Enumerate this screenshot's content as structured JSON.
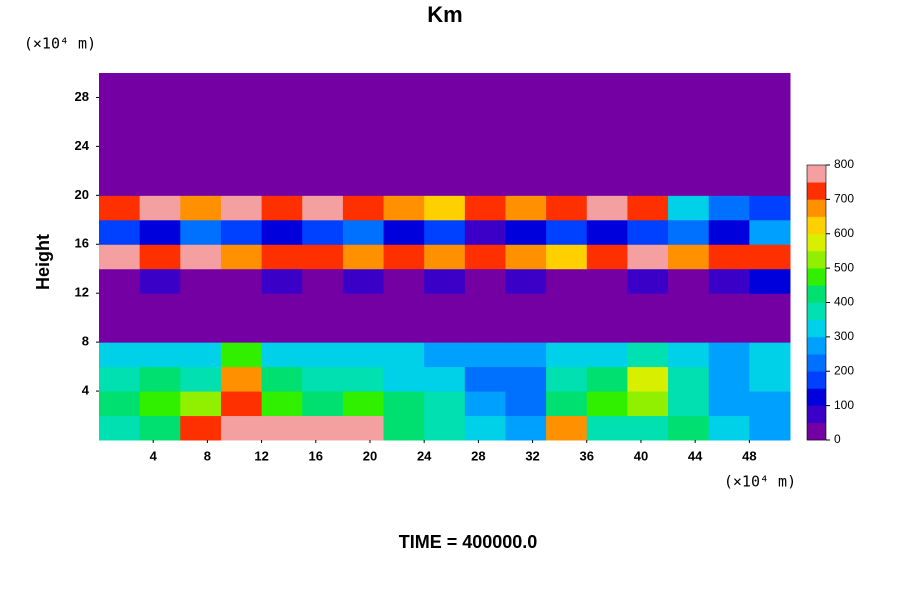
{
  "chart_data": {
    "type": "heatmap",
    "title": "Km",
    "y_label": "Height",
    "y_unit": "(×10⁴ m)",
    "x_unit": "(×10⁴ m)",
    "footer": "TIME = 400000.0",
    "xlim": [
      0,
      51
    ],
    "ylim": [
      0,
      30
    ],
    "xticks": [
      4,
      8,
      12,
      16,
      20,
      24,
      28,
      32,
      36,
      40,
      44,
      48
    ],
    "yticks": [
      4,
      8,
      12,
      16,
      20,
      24,
      28
    ],
    "x_edges": [
      0,
      3,
      6,
      9,
      12,
      15,
      18,
      21,
      24,
      27,
      30,
      33,
      36,
      39,
      42,
      45,
      48,
      51
    ],
    "y_edges": [
      0,
      2,
      4,
      6,
      8,
      10,
      12,
      14,
      16,
      18,
      20,
      22,
      24,
      26,
      28,
      30
    ],
    "z": [
      [
        380,
        420,
        720,
        750,
        760,
        780,
        760,
        400,
        350,
        300,
        260,
        650,
        380,
        350,
        420,
        300,
        250
      ],
      [
        400,
        450,
        520,
        700,
        450,
        400,
        480,
        420,
        350,
        250,
        220,
        420,
        450,
        500,
        380,
        280,
        260
      ],
      [
        380,
        420,
        350,
        650,
        420,
        380,
        350,
        330,
        300,
        200,
        200,
        380,
        420,
        550,
        350,
        260,
        300
      ],
      [
        320,
        330,
        300,
        450,
        320,
        300,
        310,
        300,
        290,
        280,
        270,
        300,
        320,
        380,
        300,
        290,
        300
      ],
      [
        0,
        0,
        0,
        0,
        0,
        0,
        0,
        0,
        0,
        0,
        0,
        0,
        0,
        0,
        0,
        0,
        0
      ],
      [
        0,
        0,
        0,
        0,
        0,
        0,
        0,
        0,
        0,
        0,
        0,
        0,
        0,
        0,
        0,
        0,
        0
      ],
      [
        0,
        50,
        0,
        0,
        50,
        0,
        50,
        0,
        50,
        0,
        50,
        0,
        0,
        50,
        0,
        50,
        100
      ],
      [
        750,
        700,
        780,
        650,
        700,
        720,
        680,
        700,
        650,
        700,
        680,
        620,
        700,
        750,
        680,
        700,
        720
      ],
      [
        150,
        100,
        200,
        150,
        100,
        150,
        200,
        100,
        150,
        50,
        100,
        150,
        100,
        150,
        200,
        100,
        250
      ],
      [
        700,
        750,
        650,
        780,
        720,
        750,
        700,
        650,
        600,
        700,
        650,
        720,
        750,
        700,
        300,
        200,
        150
      ],
      [
        0,
        0,
        0,
        0,
        0,
        0,
        0,
        0,
        0,
        0,
        0,
        0,
        0,
        0,
        0,
        0,
        0
      ],
      [
        0,
        0,
        0,
        0,
        0,
        0,
        0,
        0,
        0,
        0,
        0,
        0,
        0,
        0,
        0,
        0,
        0
      ],
      [
        0,
        0,
        0,
        0,
        0,
        0,
        0,
        0,
        0,
        0,
        0,
        0,
        0,
        0,
        0,
        0,
        0
      ],
      [
        0,
        0,
        0,
        0,
        0,
        0,
        0,
        0,
        0,
        0,
        0,
        0,
        0,
        0,
        0,
        0,
        0
      ],
      [
        0,
        0,
        0,
        0,
        0,
        0,
        0,
        0,
        0,
        0,
        0,
        0,
        0,
        0,
        0,
        0,
        0
      ]
    ],
    "levels": [
      0,
      50,
      100,
      150,
      200,
      250,
      300,
      350,
      400,
      450,
      500,
      550,
      600,
      650,
      700,
      750,
      800
    ],
    "colors": [
      "#7400a4",
      "#3a00c8",
      "#0000dc",
      "#0040ff",
      "#0070ff",
      "#00a0ff",
      "#00d0e8",
      "#00e0b0",
      "#00e070",
      "#30f000",
      "#90f000",
      "#d8f000",
      "#ffd000",
      "#ff9000",
      "#ff3000",
      "#f4a0a0"
    ],
    "colorbar_ticks": [
      0,
      100,
      200,
      300,
      400,
      500,
      600,
      700,
      800
    ]
  }
}
